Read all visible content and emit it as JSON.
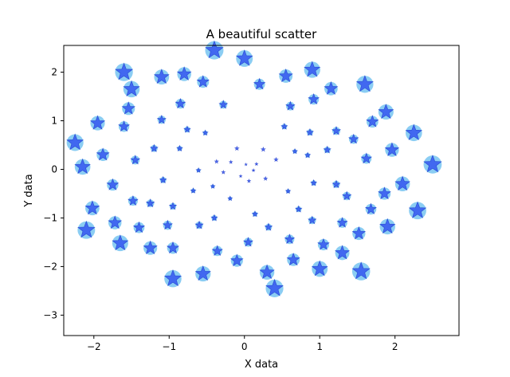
{
  "chart_data": {
    "type": "scatter",
    "title": "A beautiful scatter",
    "xlabel": "X data",
    "ylabel": "Y data",
    "xlim": [
      -2.4,
      2.85
    ],
    "ylim": [
      -3.42,
      2.55
    ],
    "xticks": [
      -2,
      -1,
      0,
      1,
      2
    ],
    "yticks": [
      -3,
      -2,
      -1,
      0,
      1,
      2
    ],
    "grid": false,
    "marker": "star",
    "colors": {
      "halo": "#7ec8f2",
      "star": "#2e4fef",
      "star_edge": "#1230c8",
      "axes": "#000000",
      "background": "#ffffff"
    },
    "points": [
      {
        "x": 0.02,
        "y": 0.1,
        "s": 0.0
      },
      {
        "x": -0.05,
        "y": -0.14,
        "s": 0.02
      },
      {
        "x": 0.12,
        "y": -0.02,
        "s": 0.03
      },
      {
        "x": 0.16,
        "y": 0.11,
        "s": 0.04
      },
      {
        "x": -0.18,
        "y": 0.15,
        "s": 0.05
      },
      {
        "x": 0.06,
        "y": -0.24,
        "s": 0.06
      },
      {
        "x": -0.28,
        "y": -0.06,
        "s": 0.07
      },
      {
        "x": 0.28,
        "y": -0.19,
        "s": 0.08
      },
      {
        "x": -0.37,
        "y": 0.16,
        "s": 0.09
      },
      {
        "x": 0.42,
        "y": 0.2,
        "s": 0.1
      },
      {
        "x": -0.1,
        "y": 0.43,
        "s": 0.11
      },
      {
        "x": 0.25,
        "y": 0.41,
        "s": 0.12
      },
      {
        "x": -0.42,
        "y": -0.35,
        "s": 0.13
      },
      {
        "x": -0.19,
        "y": -0.6,
        "s": 0.14
      },
      {
        "x": -0.61,
        "y": -0.02,
        "s": 0.15
      },
      {
        "x": 0.58,
        "y": -0.45,
        "s": 0.16
      },
      {
        "x": 0.67,
        "y": 0.37,
        "s": 0.17
      },
      {
        "x": -0.68,
        "y": -0.44,
        "s": 0.18
      },
      {
        "x": -0.52,
        "y": 0.75,
        "s": 0.19
      },
      {
        "x": 0.84,
        "y": 0.29,
        "s": 0.2
      },
      {
        "x": 0.14,
        "y": -0.92,
        "s": 0.21
      },
      {
        "x": -0.86,
        "y": 0.43,
        "s": 0.22
      },
      {
        "x": 0.92,
        "y": -0.28,
        "s": 0.23
      },
      {
        "x": 0.53,
        "y": 0.88,
        "s": 0.24
      },
      {
        "x": -0.4,
        "y": -1.0,
        "s": 0.25
      },
      {
        "x": 0.72,
        "y": -0.82,
        "s": 0.26
      },
      {
        "x": -0.76,
        "y": 0.82,
        "s": 0.27
      },
      {
        "x": -1.08,
        "y": -0.22,
        "s": 0.28
      },
      {
        "x": 0.87,
        "y": 0.76,
        "s": 0.29
      },
      {
        "x": 1.1,
        "y": 0.4,
        "s": 0.3
      },
      {
        "x": -0.95,
        "y": -0.76,
        "s": 0.31
      },
      {
        "x": 0.32,
        "y": -1.19,
        "s": 0.32
      },
      {
        "x": -1.2,
        "y": 0.43,
        "s": 0.33
      },
      {
        "x": 1.22,
        "y": -0.31,
        "s": 0.34
      },
      {
        "x": -0.6,
        "y": -1.15,
        "s": 0.35
      },
      {
        "x": 0.9,
        "y": -1.05,
        "s": 0.36
      },
      {
        "x": -1.25,
        "y": -0.7,
        "s": 0.37
      },
      {
        "x": -0.28,
        "y": 1.33,
        "s": 0.38
      },
      {
        "x": 1.22,
        "y": 0.79,
        "s": 0.39
      },
      {
        "x": -1.1,
        "y": 1.02,
        "s": 0.4
      },
      {
        "x": 1.36,
        "y": -0.55,
        "s": 0.41
      },
      {
        "x": 0.61,
        "y": 1.3,
        "s": 0.42
      },
      {
        "x": -1.45,
        "y": 0.19,
        "s": 0.43
      },
      {
        "x": 0.05,
        "y": -1.5,
        "s": 0.44
      },
      {
        "x": -1.02,
        "y": -1.15,
        "s": 0.45
      },
      {
        "x": 1.45,
        "y": 0.62,
        "s": 0.46
      },
      {
        "x": 0.6,
        "y": -1.44,
        "s": 0.47
      },
      {
        "x": -1.48,
        "y": -0.65,
        "s": 0.48
      },
      {
        "x": -0.85,
        "y": 1.35,
        "s": 0.49
      },
      {
        "x": 1.3,
        "y": -1.1,
        "s": 0.5
      },
      {
        "x": -0.36,
        "y": -1.68,
        "s": 0.51
      },
      {
        "x": 1.62,
        "y": 0.22,
        "s": 0.52
      },
      {
        "x": 0.92,
        "y": 1.44,
        "s": 0.53
      },
      {
        "x": -1.6,
        "y": 0.88,
        "s": 0.54
      },
      {
        "x": 1.68,
        "y": -0.82,
        "s": 0.55
      },
      {
        "x": -1.4,
        "y": -1.2,
        "s": 0.56
      },
      {
        "x": 0.2,
        "y": 1.75,
        "s": 0.57
      },
      {
        "x": 1.05,
        "y": -1.55,
        "s": 0.58
      },
      {
        "x": -1.75,
        "y": -0.32,
        "s": 0.59
      },
      {
        "x": -0.95,
        "y": -1.62,
        "s": 0.6
      },
      {
        "x": 1.7,
        "y": 0.98,
        "s": 0.61
      },
      {
        "x": -0.55,
        "y": 1.8,
        "s": 0.62
      },
      {
        "x": -0.1,
        "y": -1.88,
        "s": 0.63
      },
      {
        "x": 1.86,
        "y": -0.5,
        "s": 0.64
      },
      {
        "x": -1.88,
        "y": 0.3,
        "s": 0.65
      },
      {
        "x": 0.65,
        "y": -1.86,
        "s": 0.66
      },
      {
        "x": -1.54,
        "y": 1.25,
        "s": 0.67
      },
      {
        "x": 1.52,
        "y": -1.32,
        "s": 0.68
      },
      {
        "x": -1.72,
        "y": -1.1,
        "s": 0.69
      },
      {
        "x": 1.15,
        "y": 1.66,
        "s": 0.7
      },
      {
        "x": 0.55,
        "y": 1.92,
        "s": 0.71
      },
      {
        "x": -1.25,
        "y": -1.62,
        "s": 0.72
      },
      {
        "x": 1.96,
        "y": 0.4,
        "s": 0.73
      },
      {
        "x": -0.8,
        "y": 1.96,
        "s": 0.74
      },
      {
        "x": -2.02,
        "y": -0.8,
        "s": 0.75
      },
      {
        "x": 1.3,
        "y": -1.72,
        "s": 0.76
      },
      {
        "x": -1.95,
        "y": 0.95,
        "s": 0.77
      },
      {
        "x": 0.3,
        "y": -2.12,
        "s": 0.78
      },
      {
        "x": 2.1,
        "y": -0.3,
        "s": 0.79
      },
      {
        "x": -1.1,
        "y": 1.9,
        "s": 0.8
      },
      {
        "x": 1.88,
        "y": 1.18,
        "s": 0.81
      },
      {
        "x": -0.55,
        "y": -2.15,
        "s": 0.82
      },
      {
        "x": 1.9,
        "y": -1.18,
        "s": 0.83
      },
      {
        "x": -2.15,
        "y": 0.05,
        "s": 0.84
      },
      {
        "x": 1.0,
        "y": -2.05,
        "s": 0.85
      },
      {
        "x": -1.65,
        "y": -1.52,
        "s": 0.86
      },
      {
        "x": 0.9,
        "y": 2.05,
        "s": 0.87
      },
      {
        "x": -1.5,
        "y": 1.65,
        "s": 0.88
      },
      {
        "x": 2.25,
        "y": 0.75,
        "s": 0.89
      },
      {
        "x": 0.0,
        "y": 2.28,
        "s": 0.9
      },
      {
        "x": -2.25,
        "y": 0.55,
        "s": 0.91
      },
      {
        "x": 1.6,
        "y": 1.75,
        "s": 0.92
      },
      {
        "x": -0.95,
        "y": -2.25,
        "s": 0.93
      },
      {
        "x": 2.3,
        "y": -0.85,
        "s": 0.94
      },
      {
        "x": -2.1,
        "y": -1.25,
        "s": 0.95
      },
      {
        "x": 0.4,
        "y": -2.45,
        "s": 0.96
      },
      {
        "x": -1.6,
        "y": 2.0,
        "s": 0.97
      },
      {
        "x": 1.55,
        "y": -2.1,
        "s": 0.98
      },
      {
        "x": 2.5,
        "y": 0.1,
        "s": 0.99
      },
      {
        "x": -0.4,
        "y": 2.45,
        "s": 1.0
      }
    ]
  }
}
